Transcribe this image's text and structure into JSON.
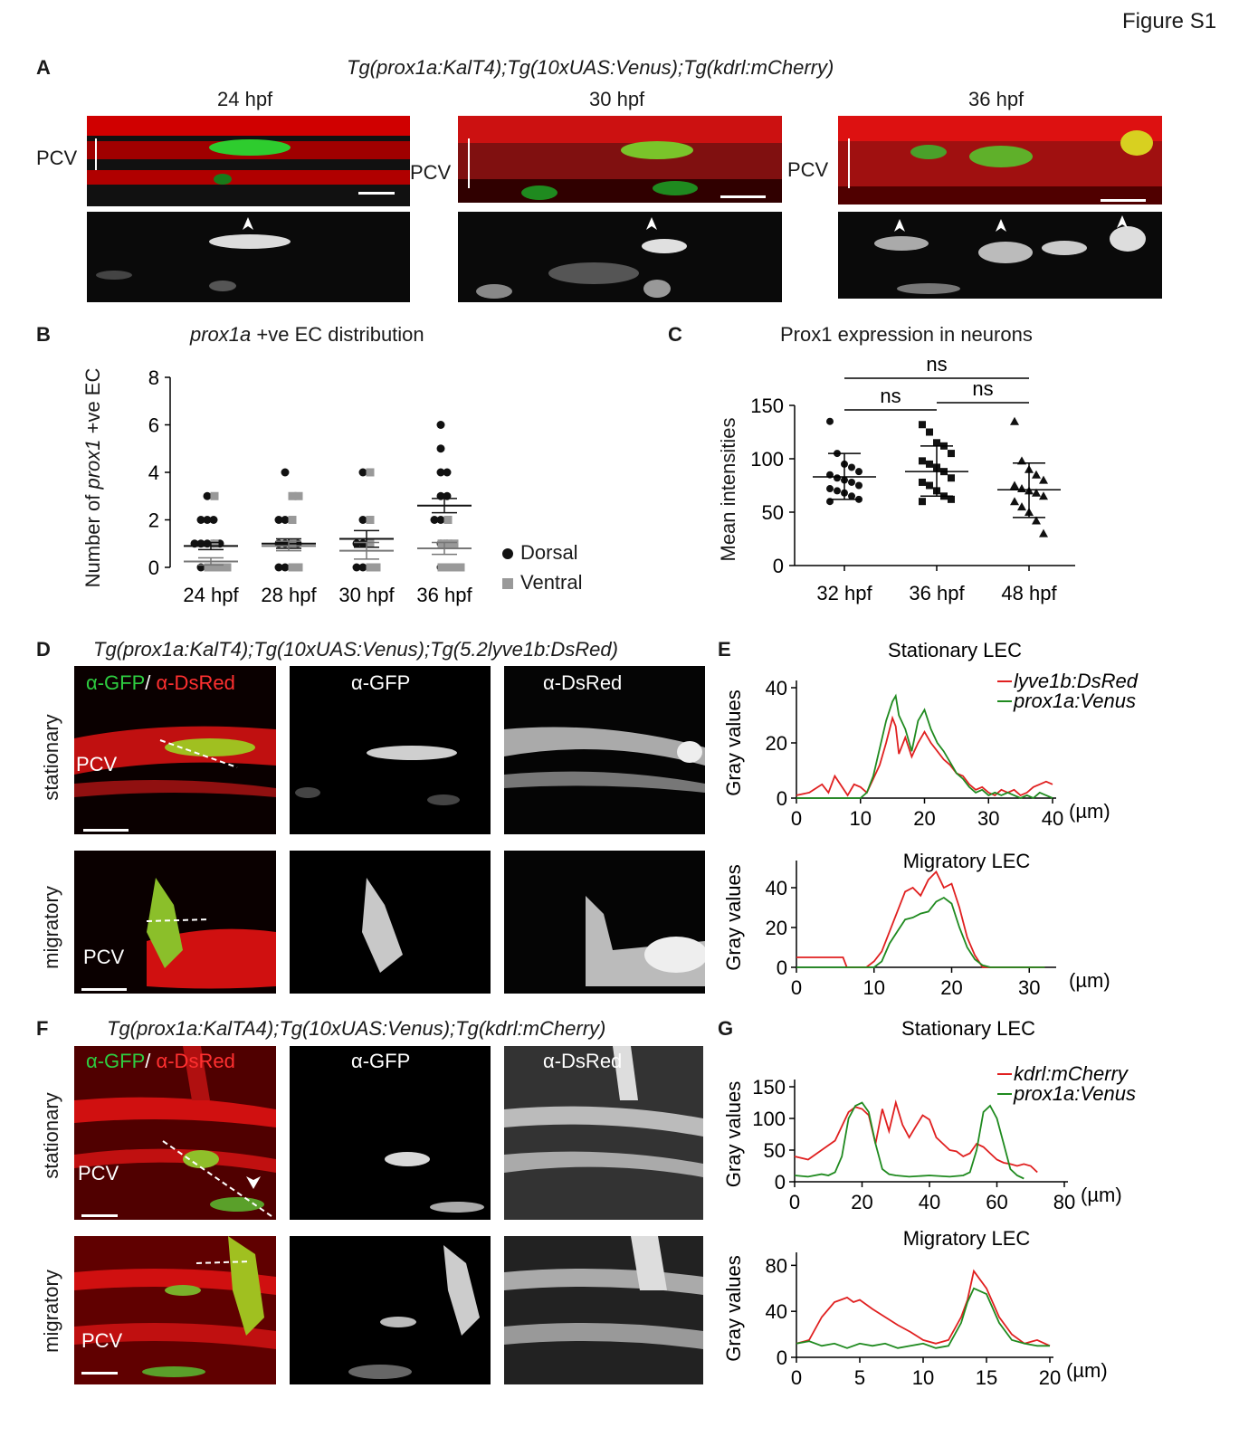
{
  "figure_label": "Figure S1",
  "panel_labels": {
    "A": "A",
    "B": "B",
    "C": "C",
    "D": "D",
    "E": "E",
    "F": "F",
    "G": "G"
  },
  "panelA": {
    "title": "Tg(prox1a:KalT4);Tg(10xUAS:Venus);Tg(kdrl:mCherry)",
    "timepoints": [
      "24 hpf",
      "30 hpf",
      "36 hpf"
    ],
    "pcv": "PCV"
  },
  "panelB": {
    "title_italic": "prox1a",
    "title_rest": " +ve EC distribution",
    "ylabel_pre": "Number of ",
    "ylabel_italic": "prox1",
    "ylabel_post": " +ve EC",
    "legend": {
      "dorsal": "Dorsal",
      "ventral": "Ventral"
    }
  },
  "panelC": {
    "title": "Prox1 expression in neurons",
    "ylabel": "Mean intensities",
    "sig": [
      "ns",
      "ns",
      "ns"
    ]
  },
  "panelD": {
    "title": "Tg(prox1a:KalT4);Tg(10xUAS:Venus);Tg(5.2lyve1b:DsRed)",
    "col1_a": "α-GFP",
    "col1_sep": "/ ",
    "col1_b": "α-DsRed",
    "col2": "α-GFP",
    "col3": "α-DsRed",
    "row1": "stationary",
    "row2": "migratory",
    "pcv": "PCV"
  },
  "panelF": {
    "title": "Tg(prox1a:KalTA4);Tg(10xUAS:Venus);Tg(kdrl:mCherry)",
    "col1_a": "α-GFP",
    "col1_sep": "/ ",
    "col1_b": "α-DsRed",
    "col2": "α-GFP",
    "col3": "α-DsRed",
    "row1": "stationary",
    "row2": "migratory",
    "pcv": "PCV"
  },
  "colors": {
    "red": "#e02020",
    "green": "#1f8a1f",
    "gray": "#999999",
    "black": "#111111"
  },
  "chart_data": [
    {
      "id": "B",
      "type": "scatter",
      "title": "prox1a +ve EC distribution",
      "ylabel": "Number of prox1 +ve EC",
      "categories": [
        "24 hpf",
        "28 hpf",
        "30 hpf",
        "36 hpf"
      ],
      "ylim": [
        0,
        8
      ],
      "yticks": [
        0,
        2,
        4,
        6,
        8
      ],
      "series": [
        {
          "name": "Dorsal",
          "marker": "circle",
          "color": "#111111",
          "points": [
            [
              0,
              3
            ],
            [
              0,
              2
            ],
            [
              0,
              2
            ],
            [
              0,
              2
            ],
            [
              0,
              1
            ],
            [
              0,
              1
            ],
            [
              0,
              1
            ],
            [
              0,
              1
            ],
            [
              0,
              1
            ],
            [
              0,
              0
            ],
            [
              0,
              0
            ],
            [
              0,
              0
            ],
            [
              1,
              4
            ],
            [
              1,
              2
            ],
            [
              1,
              2
            ],
            [
              1,
              2
            ],
            [
              1,
              1
            ],
            [
              1,
              1
            ],
            [
              1,
              1
            ],
            [
              1,
              1
            ],
            [
              1,
              0
            ],
            [
              1,
              0
            ],
            [
              1,
              0
            ],
            [
              2,
              4
            ],
            [
              2,
              4
            ],
            [
              2,
              2
            ],
            [
              2,
              2
            ],
            [
              2,
              1
            ],
            [
              2,
              1
            ],
            [
              2,
              1
            ],
            [
              2,
              0
            ],
            [
              2,
              0
            ],
            [
              2,
              0
            ],
            [
              3,
              6
            ],
            [
              3,
              5
            ],
            [
              3,
              4
            ],
            [
              3,
              4
            ],
            [
              3,
              3
            ],
            [
              3,
              3
            ],
            [
              3,
              2
            ],
            [
              3,
              2
            ],
            [
              3,
              2
            ],
            [
              3,
              1
            ],
            [
              3,
              1
            ],
            [
              3,
              0
            ]
          ]
        },
        {
          "name": "Ventral",
          "marker": "square",
          "color": "#999999",
          "points": [
            [
              0,
              3
            ],
            [
              0,
              1
            ],
            [
              0,
              0
            ],
            [
              0,
              0
            ],
            [
              0,
              0
            ],
            [
              0,
              0
            ],
            [
              1,
              3
            ],
            [
              1,
              3
            ],
            [
              1,
              2
            ],
            [
              1,
              1
            ],
            [
              1,
              0
            ],
            [
              1,
              0
            ],
            [
              2,
              4
            ],
            [
              2,
              2
            ],
            [
              2,
              1
            ],
            [
              2,
              0
            ],
            [
              2,
              0
            ],
            [
              3,
              2
            ],
            [
              3,
              1
            ],
            [
              3,
              1
            ],
            [
              3,
              1
            ],
            [
              3,
              0
            ],
            [
              3,
              0
            ],
            [
              3,
              0
            ],
            [
              3,
              0
            ]
          ]
        }
      ],
      "summary": [
        {
          "category": "24 hpf",
          "dorsal_mean": 0.9,
          "dorsal_sem": [
            0.75,
            1.05
          ],
          "ventral_mean": 0.25,
          "ventral_sem": [
            0.1,
            0.4
          ]
        },
        {
          "category": "28 hpf",
          "dorsal_mean": 1.0,
          "dorsal_sem": [
            0.8,
            1.2
          ],
          "ventral_mean": 0.9,
          "ventral_sem": [
            0.7,
            1.1
          ]
        },
        {
          "category": "30 hpf",
          "dorsal_mean": 1.2,
          "dorsal_sem": [
            0.85,
            1.55
          ],
          "ventral_mean": 0.7,
          "ventral_sem": [
            0.35,
            1.05
          ]
        },
        {
          "category": "36 hpf",
          "dorsal_mean": 2.6,
          "dorsal_sem": [
            2.3,
            2.9
          ],
          "ventral_mean": 0.8,
          "ventral_sem": [
            0.55,
            1.05
          ]
        }
      ]
    },
    {
      "id": "C",
      "type": "scatter",
      "title": "Prox1 expression in neurons",
      "ylabel": "Mean intensities",
      "categories": [
        "32 hpf",
        "36 hpf",
        "48 hpf"
      ],
      "ylim": [
        0,
        150
      ],
      "yticks": [
        0,
        50,
        100,
        150
      ],
      "series": [
        {
          "name": "32 hpf",
          "marker": "circle",
          "values": [
            135,
            105,
            95,
            92,
            88,
            85,
            82,
            80,
            78,
            75,
            72,
            70,
            68,
            65,
            62,
            60
          ]
        },
        {
          "name": "36 hpf",
          "marker": "square",
          "values": [
            132,
            125,
            115,
            112,
            105,
            98,
            95,
            92,
            88,
            82,
            78,
            75,
            70,
            65,
            62,
            60
          ]
        },
        {
          "name": "48 hpf",
          "marker": "triangle",
          "values": [
            135,
            98,
            90,
            85,
            80,
            75,
            72,
            70,
            68,
            65,
            60,
            55,
            50,
            42,
            30
          ]
        }
      ],
      "summary": [
        {
          "category": "32 hpf",
          "mean": 83,
          "sd": [
            62,
            105
          ]
        },
        {
          "category": "36 hpf",
          "mean": 88,
          "sd": [
            65,
            112
          ]
        },
        {
          "category": "48 hpf",
          "mean": 71,
          "sd": [
            45,
            96
          ]
        }
      ],
      "comparisons": [
        [
          "32 hpf",
          "36 hpf",
          "ns"
        ],
        [
          "36 hpf",
          "48 hpf",
          "ns"
        ],
        [
          "32 hpf",
          "48 hpf",
          "ns"
        ]
      ]
    },
    {
      "id": "E1",
      "type": "line",
      "title": "Stationary LEC",
      "ylabel": "Gray values",
      "xlabel": "(µm)",
      "xlim": [
        0,
        40
      ],
      "ylim": [
        0,
        40
      ],
      "xticks": [
        0,
        10,
        20,
        30,
        40
      ],
      "yticks": [
        0,
        20,
        40
      ],
      "series": [
        {
          "name": "lyve1b:DsRed",
          "color": "#e02020",
          "x": [
            0,
            2,
            4,
            5,
            6,
            8,
            9,
            10,
            11,
            12,
            13,
            14,
            15,
            15.5,
            16,
            17,
            18,
            19,
            20,
            21,
            22,
            23,
            24,
            25,
            26,
            27,
            28,
            29,
            30,
            31,
            32,
            33,
            34,
            35,
            36,
            37,
            38,
            39,
            40
          ],
          "y": [
            1,
            2,
            5,
            2,
            8,
            1,
            5,
            4,
            2,
            7,
            12,
            20,
            29,
            26,
            16,
            22,
            15,
            20,
            24,
            20,
            17,
            14,
            12,
            9,
            8,
            5,
            3,
            4,
            2,
            1,
            3,
            2,
            3,
            1,
            2,
            4,
            5,
            6,
            5
          ]
        },
        {
          "name": "prox1a:Venus",
          "color": "#1f8a1f",
          "x": [
            0,
            10,
            11,
            12,
            13,
            14,
            15,
            15.5,
            16,
            17,
            18,
            19,
            20,
            21,
            22,
            23,
            24,
            25,
            26,
            27,
            28,
            29,
            30,
            31,
            32,
            33,
            34,
            35,
            36,
            37,
            38,
            39,
            40
          ],
          "y": [
            0,
            0,
            2,
            8,
            18,
            28,
            35,
            37,
            30,
            25,
            17,
            28,
            32,
            25,
            20,
            17,
            13,
            9,
            7,
            4,
            2,
            3,
            1,
            2,
            1,
            2,
            1,
            0,
            1,
            0,
            2,
            1,
            0
          ]
        }
      ]
    },
    {
      "id": "E2",
      "type": "line",
      "title": "Migratory LEC",
      "ylabel": "Gray values",
      "xlabel": "(µm)",
      "xlim": [
        0,
        33
      ],
      "ylim": [
        0,
        50
      ],
      "xticks": [
        0,
        10,
        20,
        30
      ],
      "yticks": [
        0,
        20,
        40
      ],
      "series": [
        {
          "name": "lyve1b:DsRed",
          "color": "#e02020",
          "x": [
            0,
            6,
            6.5,
            9,
            10,
            11,
            12,
            13,
            14,
            15,
            16,
            17,
            18,
            19,
            20,
            21,
            22,
            23,
            24,
            25,
            26,
            27,
            30,
            32
          ],
          "y": [
            5,
            5,
            0,
            0,
            3,
            8,
            18,
            28,
            38,
            40,
            36,
            44,
            48,
            40,
            42,
            30,
            15,
            6,
            0,
            0,
            0,
            0,
            0,
            0
          ]
        },
        {
          "name": "prox1a:Venus",
          "color": "#1f8a1f",
          "x": [
            0,
            6,
            10,
            11,
            12,
            13,
            14,
            15,
            16,
            17,
            18,
            19,
            20,
            21,
            22,
            23,
            24,
            25,
            27,
            30,
            32
          ],
          "y": [
            0,
            0,
            0,
            3,
            12,
            18,
            24,
            25,
            27,
            28,
            33,
            35,
            32,
            20,
            10,
            4,
            1,
            0,
            0,
            0,
            0
          ]
        }
      ]
    },
    {
      "id": "G1",
      "type": "line",
      "title": "Stationary LEC",
      "ylabel": "Gray values",
      "xlabel": "(µm)",
      "xlim": [
        0,
        80
      ],
      "ylim": [
        0,
        150
      ],
      "xticks": [
        0,
        20,
        40,
        60,
        80
      ],
      "yticks": [
        0,
        50,
        100,
        150
      ],
      "series": [
        {
          "name": "kdrl:mCherry",
          "color": "#e02020",
          "x": [
            0,
            4,
            8,
            12,
            16,
            18,
            20,
            22,
            24,
            26,
            28,
            30,
            32,
            34,
            36,
            38,
            40,
            42,
            44,
            46,
            48,
            50,
            52,
            54,
            56,
            58,
            60,
            62,
            64,
            66,
            68,
            70,
            72
          ],
          "y": [
            40,
            35,
            50,
            65,
            110,
            118,
            115,
            105,
            60,
            115,
            80,
            125,
            90,
            70,
            88,
            105,
            98,
            70,
            60,
            50,
            48,
            40,
            45,
            60,
            55,
            45,
            35,
            30,
            28,
            25,
            28,
            25,
            15
          ]
        },
        {
          "name": "prox1a:Venus",
          "color": "#1f8a1f",
          "x": [
            0,
            4,
            8,
            10,
            12,
            14,
            16,
            18,
            20,
            22,
            24,
            26,
            28,
            30,
            34,
            40,
            46,
            50,
            52,
            54,
            56,
            58,
            60,
            62,
            64,
            66,
            68
          ],
          "y": [
            10,
            8,
            12,
            10,
            15,
            40,
            100,
            120,
            125,
            110,
            60,
            20,
            12,
            10,
            8,
            10,
            8,
            10,
            15,
            50,
            110,
            120,
            100,
            60,
            20,
            10,
            5
          ]
        }
      ]
    },
    {
      "id": "G2",
      "type": "line",
      "title": "Migratory LEC",
      "ylabel": "Gray values",
      "xlabel": "(µm)",
      "xlim": [
        0,
        20
      ],
      "ylim": [
        0,
        85
      ],
      "xticks": [
        0,
        5,
        10,
        15,
        20
      ],
      "yticks": [
        0,
        40,
        80
      ],
      "series": [
        {
          "name": "kdrl:mCherry",
          "color": "#e02020",
          "x": [
            0,
            1,
            2,
            3,
            3.5,
            4,
            4.5,
            5,
            6,
            7,
            8,
            9,
            10,
            11,
            12,
            13,
            13.5,
            14,
            15,
            16,
            17,
            18,
            19,
            20
          ],
          "y": [
            12,
            15,
            35,
            48,
            50,
            52,
            48,
            50,
            42,
            35,
            28,
            22,
            15,
            12,
            15,
            35,
            50,
            75,
            60,
            35,
            20,
            12,
            15,
            10
          ]
        },
        {
          "name": "prox1a:Venus",
          "color": "#1f8a1f",
          "x": [
            0,
            1,
            2,
            3,
            4,
            5,
            6,
            7,
            8,
            9,
            10,
            11,
            12,
            13,
            13.5,
            14,
            15,
            16,
            17,
            18,
            19,
            20
          ],
          "y": [
            12,
            14,
            10,
            12,
            8,
            12,
            10,
            12,
            8,
            10,
            12,
            8,
            10,
            30,
            48,
            60,
            55,
            30,
            15,
            12,
            10,
            10
          ]
        }
      ]
    }
  ]
}
